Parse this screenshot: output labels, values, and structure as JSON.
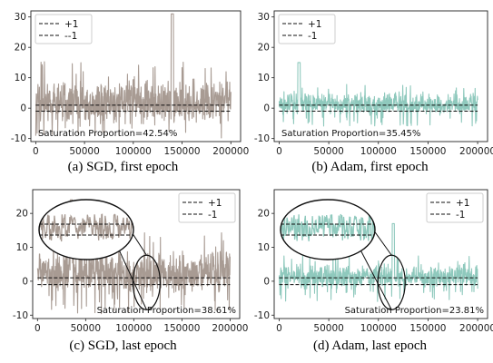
{
  "chart_data": [
    {
      "type": "line",
      "caption": "(a) SGD, first epoch",
      "series": [
        {
          "name": "+1",
          "constant": 1,
          "style": "dashed"
        },
        {
          "name": "--1",
          "constant": -1,
          "style": "dashed"
        }
      ],
      "trace_color": "#a89b93",
      "ylim": [
        -11,
        32
      ],
      "yticks": [
        -10,
        0,
        10,
        20,
        30
      ],
      "xlim": [
        -5000,
        210000
      ],
      "xticks": [
        0,
        50000,
        100000,
        150000,
        200000
      ],
      "xlabel": "",
      "ylabel": "",
      "annotation": "Saturation Proportion=42.54%",
      "legend": "top-left",
      "zoom_inset": false,
      "signal": {
        "base": 0.5,
        "amp": 10,
        "spike_x": 140000,
        "spike_y": 31,
        "min": -10
      }
    },
    {
      "type": "line",
      "caption": "(b) Adam, first epoch",
      "series": [
        {
          "name": "+1",
          "constant": 1,
          "style": "dashed"
        },
        {
          "name": "-1",
          "constant": -1,
          "style": "dashed"
        }
      ],
      "trace_color": "#8fc9bd",
      "ylim": [
        -11,
        32
      ],
      "yticks": [
        -10,
        0,
        10,
        20,
        30
      ],
      "xlim": [
        -5000,
        210000
      ],
      "xticks": [
        0,
        50000,
        100000,
        150000,
        200000
      ],
      "xlabel": "",
      "ylabel": "",
      "annotation": "Saturation Proportion=35.45%",
      "legend": "top-left",
      "zoom_inset": false,
      "signal": {
        "base": 0.5,
        "amp": 5,
        "spike_x": 20000,
        "spike_y": 15,
        "min": -6
      }
    },
    {
      "type": "line",
      "caption": "(c) SGD, last epoch",
      "series": [
        {
          "name": "+1",
          "constant": 1,
          "style": "dashed"
        },
        {
          "name": "-1",
          "constant": -1,
          "style": "dashed"
        }
      ],
      "trace_color": "#a89b93",
      "ylim": [
        -11,
        27
      ],
      "yticks": [
        -10,
        0,
        10,
        20
      ],
      "xlim": [
        -5000,
        210000
      ],
      "xticks": [
        0,
        50000,
        100000,
        150000,
        200000
      ],
      "xlabel": "",
      "ylabel": "",
      "annotation": "Saturation Proportion=38.61%",
      "legend": "top-right",
      "zoom_inset": true,
      "signal": {
        "base": 1,
        "amp": 9,
        "spike_x": 35000,
        "spike_y": 24,
        "min": -10
      }
    },
    {
      "type": "line",
      "caption": "(d) Adam, last epoch",
      "series": [
        {
          "name": "+1",
          "constant": 1,
          "style": "dashed"
        },
        {
          "name": "-1",
          "constant": -1,
          "style": "dashed"
        }
      ],
      "trace_color": "#8fc9bd",
      "ylim": [
        -11,
        27
      ],
      "yticks": [
        -10,
        0,
        10,
        20
      ],
      "xlim": [
        -5000,
        210000
      ],
      "xticks": [
        0,
        50000,
        100000,
        150000,
        200000
      ],
      "xlabel": "",
      "ylabel": "",
      "annotation": "Saturation Proportion=23.81%",
      "legend": "top-right",
      "zoom_inset": true,
      "signal": {
        "base": 0.5,
        "amp": 5,
        "spike_x": 115000,
        "spike_y": 17,
        "min": -6
      }
    }
  ]
}
